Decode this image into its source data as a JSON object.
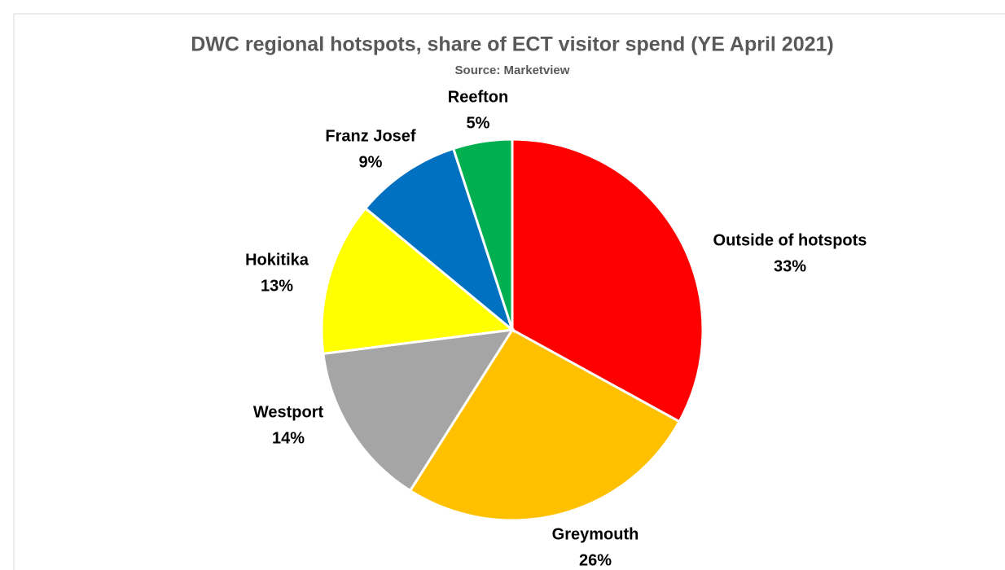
{
  "chart_data": {
    "type": "pie",
    "title": "DWC regional hotspots, share of ECT visitor spend (YE April 2021)",
    "subtitle": "Source: Marketview",
    "categories": [
      "Outside of hotspots",
      "Greymouth",
      "Westport",
      "Hokitika",
      "Franz Josef",
      "Reefton"
    ],
    "values": [
      33,
      26,
      14,
      13,
      9,
      5
    ],
    "value_labels": [
      "33%",
      "26%",
      "14%",
      "13%",
      "9%",
      "5%"
    ],
    "colors": [
      "#ff0000",
      "#ffc000",
      "#a5a5a5",
      "#ffff00",
      "#0070c0",
      "#00b050"
    ]
  }
}
